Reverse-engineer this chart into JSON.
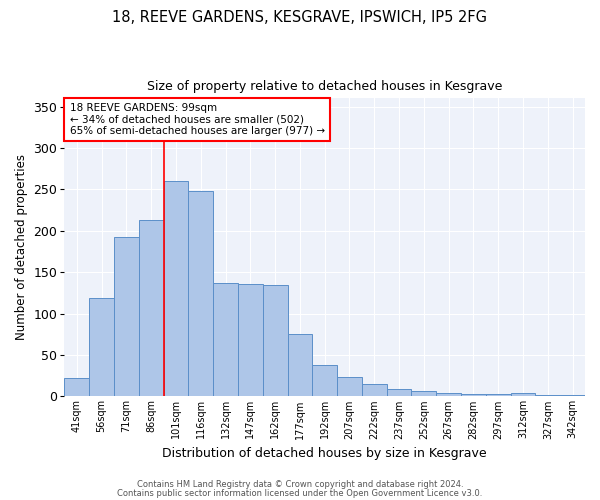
{
  "title1": "18, REEVE GARDENS, KESGRAVE, IPSWICH, IP5 2FG",
  "title2": "Size of property relative to detached houses in Kesgrave",
  "xlabel": "Distribution of detached houses by size in Kesgrave",
  "ylabel": "Number of detached properties",
  "categories": [
    "41sqm",
    "56sqm",
    "71sqm",
    "86sqm",
    "101sqm",
    "116sqm",
    "132sqm",
    "147sqm",
    "162sqm",
    "177sqm",
    "192sqm",
    "207sqm",
    "222sqm",
    "237sqm",
    "252sqm",
    "267sqm",
    "282sqm",
    "297sqm",
    "312sqm",
    "327sqm",
    "342sqm"
  ],
  "values": [
    22,
    119,
    193,
    213,
    260,
    248,
    137,
    136,
    135,
    75,
    38,
    24,
    15,
    9,
    6,
    4,
    3,
    3,
    4,
    2,
    2
  ],
  "bar_color": "#aec6e8",
  "bar_edge_color": "#5b8fc9",
  "background_color": "#eef2fa",
  "red_line_x": 3.5,
  "annotation_title": "18 REEVE GARDENS: 99sqm",
  "annotation_line1": "← 34% of detached houses are smaller (502)",
  "annotation_line2": "65% of semi-detached houses are larger (977) →",
  "footer1": "Contains HM Land Registry data © Crown copyright and database right 2024.",
  "footer2": "Contains public sector information licensed under the Open Government Licence v3.0.",
  "ylim": [
    0,
    360
  ],
  "yticks": [
    0,
    50,
    100,
    150,
    200,
    250,
    300,
    350
  ]
}
